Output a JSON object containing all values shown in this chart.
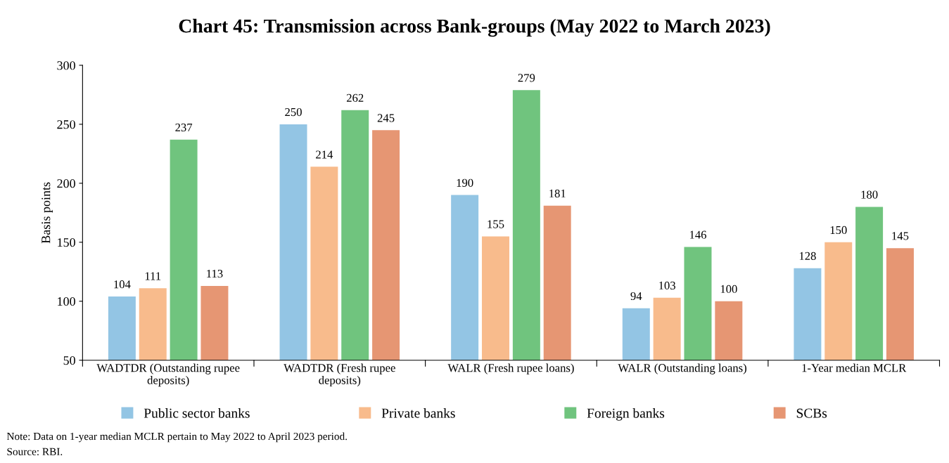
{
  "chart_data": {
    "type": "bar",
    "title": "Chart 45: Transmission across Bank-groups (May 2022 to March 2023)",
    "ylabel": "Basis points",
    "categories": [
      "WADTDR (Outstanding rupee\ndeposits)",
      "WADTDR (Fresh rupee\ndeposits)",
      "WALR (Fresh rupee loans)",
      "WALR (Outstanding loans)",
      "1-Year median MCLR"
    ],
    "series": [
      {
        "name": "Public sector banks",
        "color": "#93c5e4",
        "values": [
          104,
          250,
          190,
          94,
          128
        ]
      },
      {
        "name": "Private banks",
        "color": "#f8bb8c",
        "values": [
          111,
          214,
          155,
          103,
          150
        ]
      },
      {
        "name": "Foreign banks",
        "color": "#70c47e",
        "values": [
          237,
          262,
          279,
          146,
          180
        ]
      },
      {
        "name": "SCBs",
        "color": "#e69673",
        "values": [
          113,
          245,
          181,
          100,
          145
        ]
      }
    ],
    "ylim": [
      50,
      300
    ],
    "yticks": [
      50,
      100,
      150,
      200,
      250,
      300
    ],
    "data_labels": true,
    "grid": false,
    "legend": "bottom",
    "annotations": [
      "Note: Data on 1-year median MCLR pertain to May 2022 to April 2023 period.",
      "Source: RBI."
    ]
  }
}
